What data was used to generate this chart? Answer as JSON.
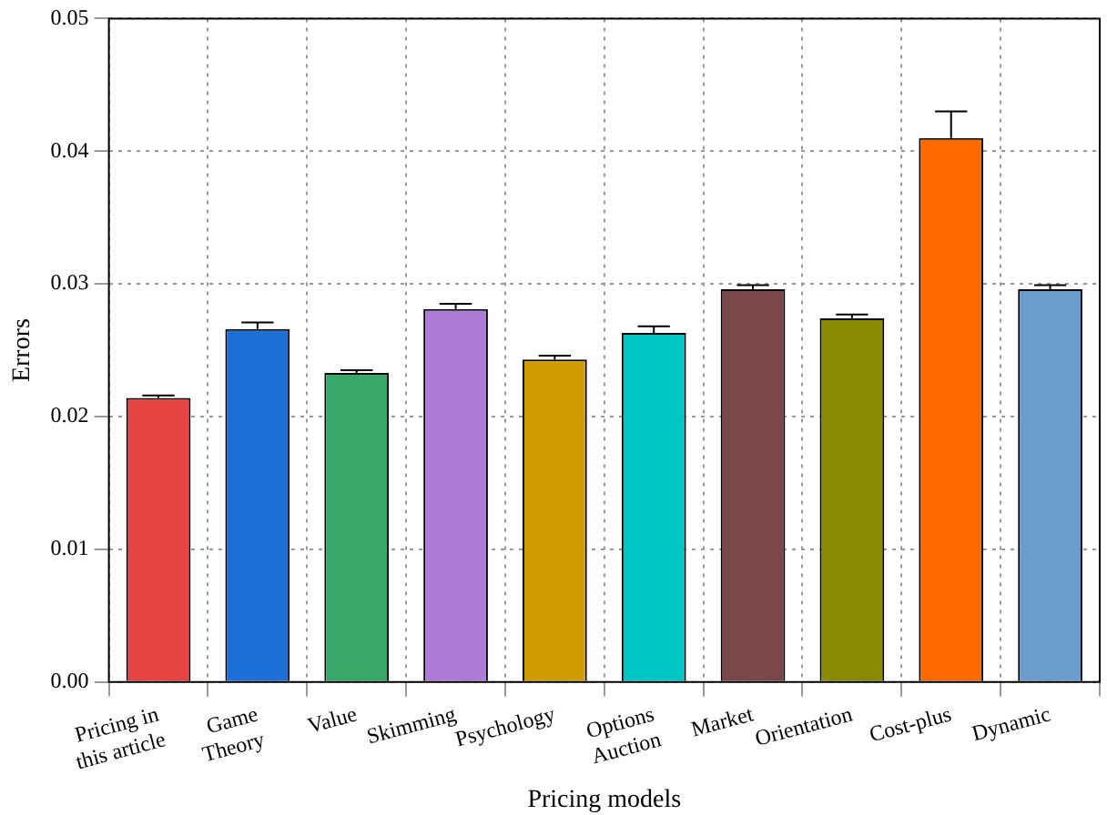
{
  "chart_data": {
    "type": "bar",
    "xlabel": "Pricing models",
    "ylabel": "Errors",
    "categories": [
      "Pricing in this article",
      "Game Theory",
      "Value",
      "Skimming",
      "Psychology",
      "Options Auction",
      "Market",
      "Orientation",
      "Cost-plus",
      "Dynamic"
    ],
    "values": [
      0.0214,
      0.0266,
      0.0233,
      0.0281,
      0.0243,
      0.0263,
      0.0296,
      0.0274,
      0.041,
      0.0296
    ],
    "errors": [
      [
        0.0214,
        0.0216
      ],
      [
        0.0266,
        0.0271
      ],
      [
        0.0233,
        0.0235
      ],
      [
        0.0281,
        0.0285
      ],
      [
        0.0243,
        0.0246
      ],
      [
        0.0263,
        0.0268
      ],
      [
        0.0296,
        0.0299
      ],
      [
        0.0274,
        0.0277
      ],
      [
        0.041,
        0.043
      ],
      [
        0.0296,
        0.0299
      ]
    ],
    "colors": [
      "#e84343",
      "#1f6fd8",
      "#38a86a",
      "#b07ad8",
      "#d09c00",
      "#00c6c6",
      "#7a4848",
      "#8a8a00",
      "#ff6a00",
      "#6b9dcc"
    ],
    "ylim": [
      0,
      0.05
    ],
    "yticks": [
      {
        "value": 0,
        "label": "0.00"
      },
      0.01,
      0.02,
      0.03,
      0.04,
      0.05
    ],
    "grid": true,
    "legend": false
  }
}
